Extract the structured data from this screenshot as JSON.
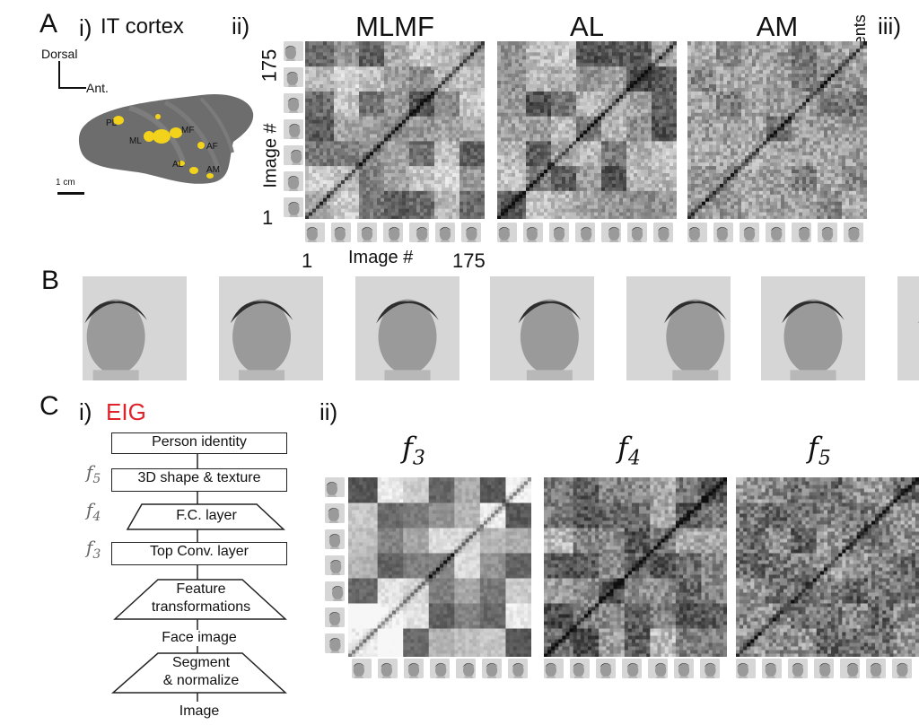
{
  "panelA": {
    "letter": "A",
    "i_label": "i)",
    "i_title": "IT cortex",
    "orient_dorsal": "Dorsal",
    "orient_ant": "Ant.",
    "scale": "1 cm",
    "patches": [
      "PL",
      "ML",
      "MF",
      "AF",
      "AL",
      "AM"
    ],
    "ii_label": "ii)",
    "iii_label": "iii)",
    "iii_axis": "Coefficients",
    "matrices": [
      "MLMF",
      "AL",
      "AM"
    ],
    "y_axis_label": "Image #",
    "y_top": "175",
    "y_bottom": "1",
    "x_axis_label": "Image #",
    "x_left": "1",
    "x_right": "175"
  },
  "panelB": {
    "letter": "B",
    "face_count": 7
  },
  "panelC": {
    "letter": "C",
    "i_label": "i)",
    "eig": "EIG",
    "ii_label": "ii)",
    "boxes": {
      "person": "Person identity",
      "shape": "3D shape & texture",
      "fc": "F.C. layer",
      "conv": "Top Conv. layer",
      "feat1": "Feature",
      "feat2": "transformations",
      "face": "Face image",
      "seg1": "Segment",
      "seg2": "& normalize",
      "image": "Image"
    },
    "side_labels": {
      "f5": "f",
      "f5_sub": "5",
      "f4": "f",
      "f4_sub": "4",
      "f3": "f",
      "f3_sub": "3"
    },
    "matrices": [
      {
        "f": "f",
        "sub": "3"
      },
      {
        "f": "f",
        "sub": "4"
      },
      {
        "f": "f",
        "sub": "5"
      }
    ]
  },
  "colors": {
    "eig_red": "#e0232a",
    "patch_yellow": "#f2d21a",
    "brain_gray": "#6d6d6d"
  }
}
